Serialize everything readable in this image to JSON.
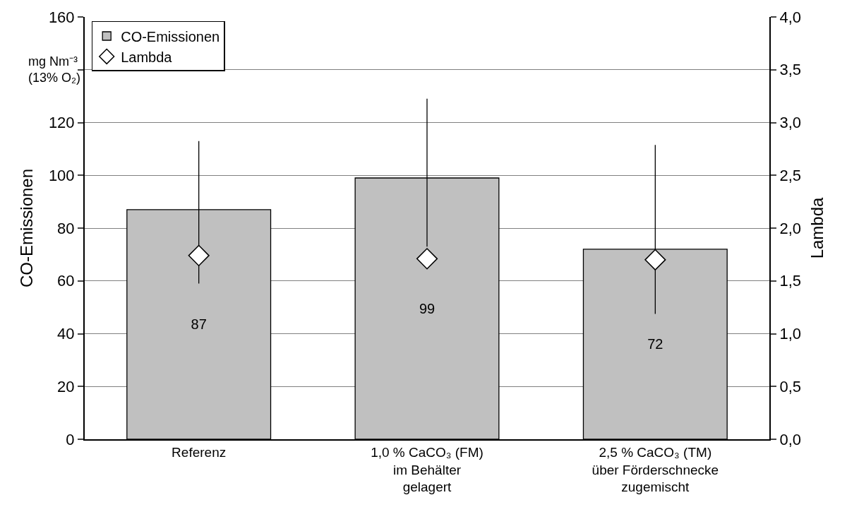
{
  "chart_data": {
    "type": "bar",
    "categories": [
      "Referenz",
      "1,0 % CaCO₃ (FM)\nim Behälter\ngelagert",
      "2,5 % CaCO₃ (TM)\nüber Förderschnecke\nzugemischt"
    ],
    "series": [
      {
        "name": "CO-Emissionen",
        "color": "#c0c0c0",
        "values": [
          87,
          99,
          72
        ],
        "value_labels": [
          "87",
          "99",
          "72"
        ],
        "errors": [
          [
            59,
            113
          ],
          [
            73,
            129
          ],
          [
            47.5,
            111.5
          ]
        ]
      },
      {
        "name": "Lambda",
        "type": "scatter",
        "axis": "y2",
        "color": "#ffffff",
        "marker": "diamond",
        "values": [
          1.74,
          1.71,
          1.7
        ]
      }
    ],
    "ylabel": "CO-Emissionen",
    "y2label": "Lambda",
    "annotations": [
      "mg Nm⁻³\n(13% O₂)"
    ],
    "ylim": [
      0,
      160
    ],
    "yticks": [
      0,
      20,
      40,
      60,
      80,
      100,
      120,
      {
        "value": 140,
        "label": null
      },
      160
    ],
    "y2lim": [
      0,
      4
    ],
    "y2ticks": [
      {
        "value": 0,
        "label": "0,0"
      },
      {
        "value": 0.5,
        "label": "0,5"
      },
      {
        "value": 1,
        "label": "1,0"
      },
      {
        "value": 1.5,
        "label": "1,5"
      },
      {
        "value": 2,
        "label": "2,0"
      },
      {
        "value": 2.5,
        "label": "2,5"
      },
      {
        "value": 3,
        "label": "3,0"
      },
      {
        "value": 3.5,
        "label": "3,5"
      },
      {
        "value": 4,
        "label": "4,0"
      }
    ],
    "grid": "y",
    "legend": "top left"
  }
}
